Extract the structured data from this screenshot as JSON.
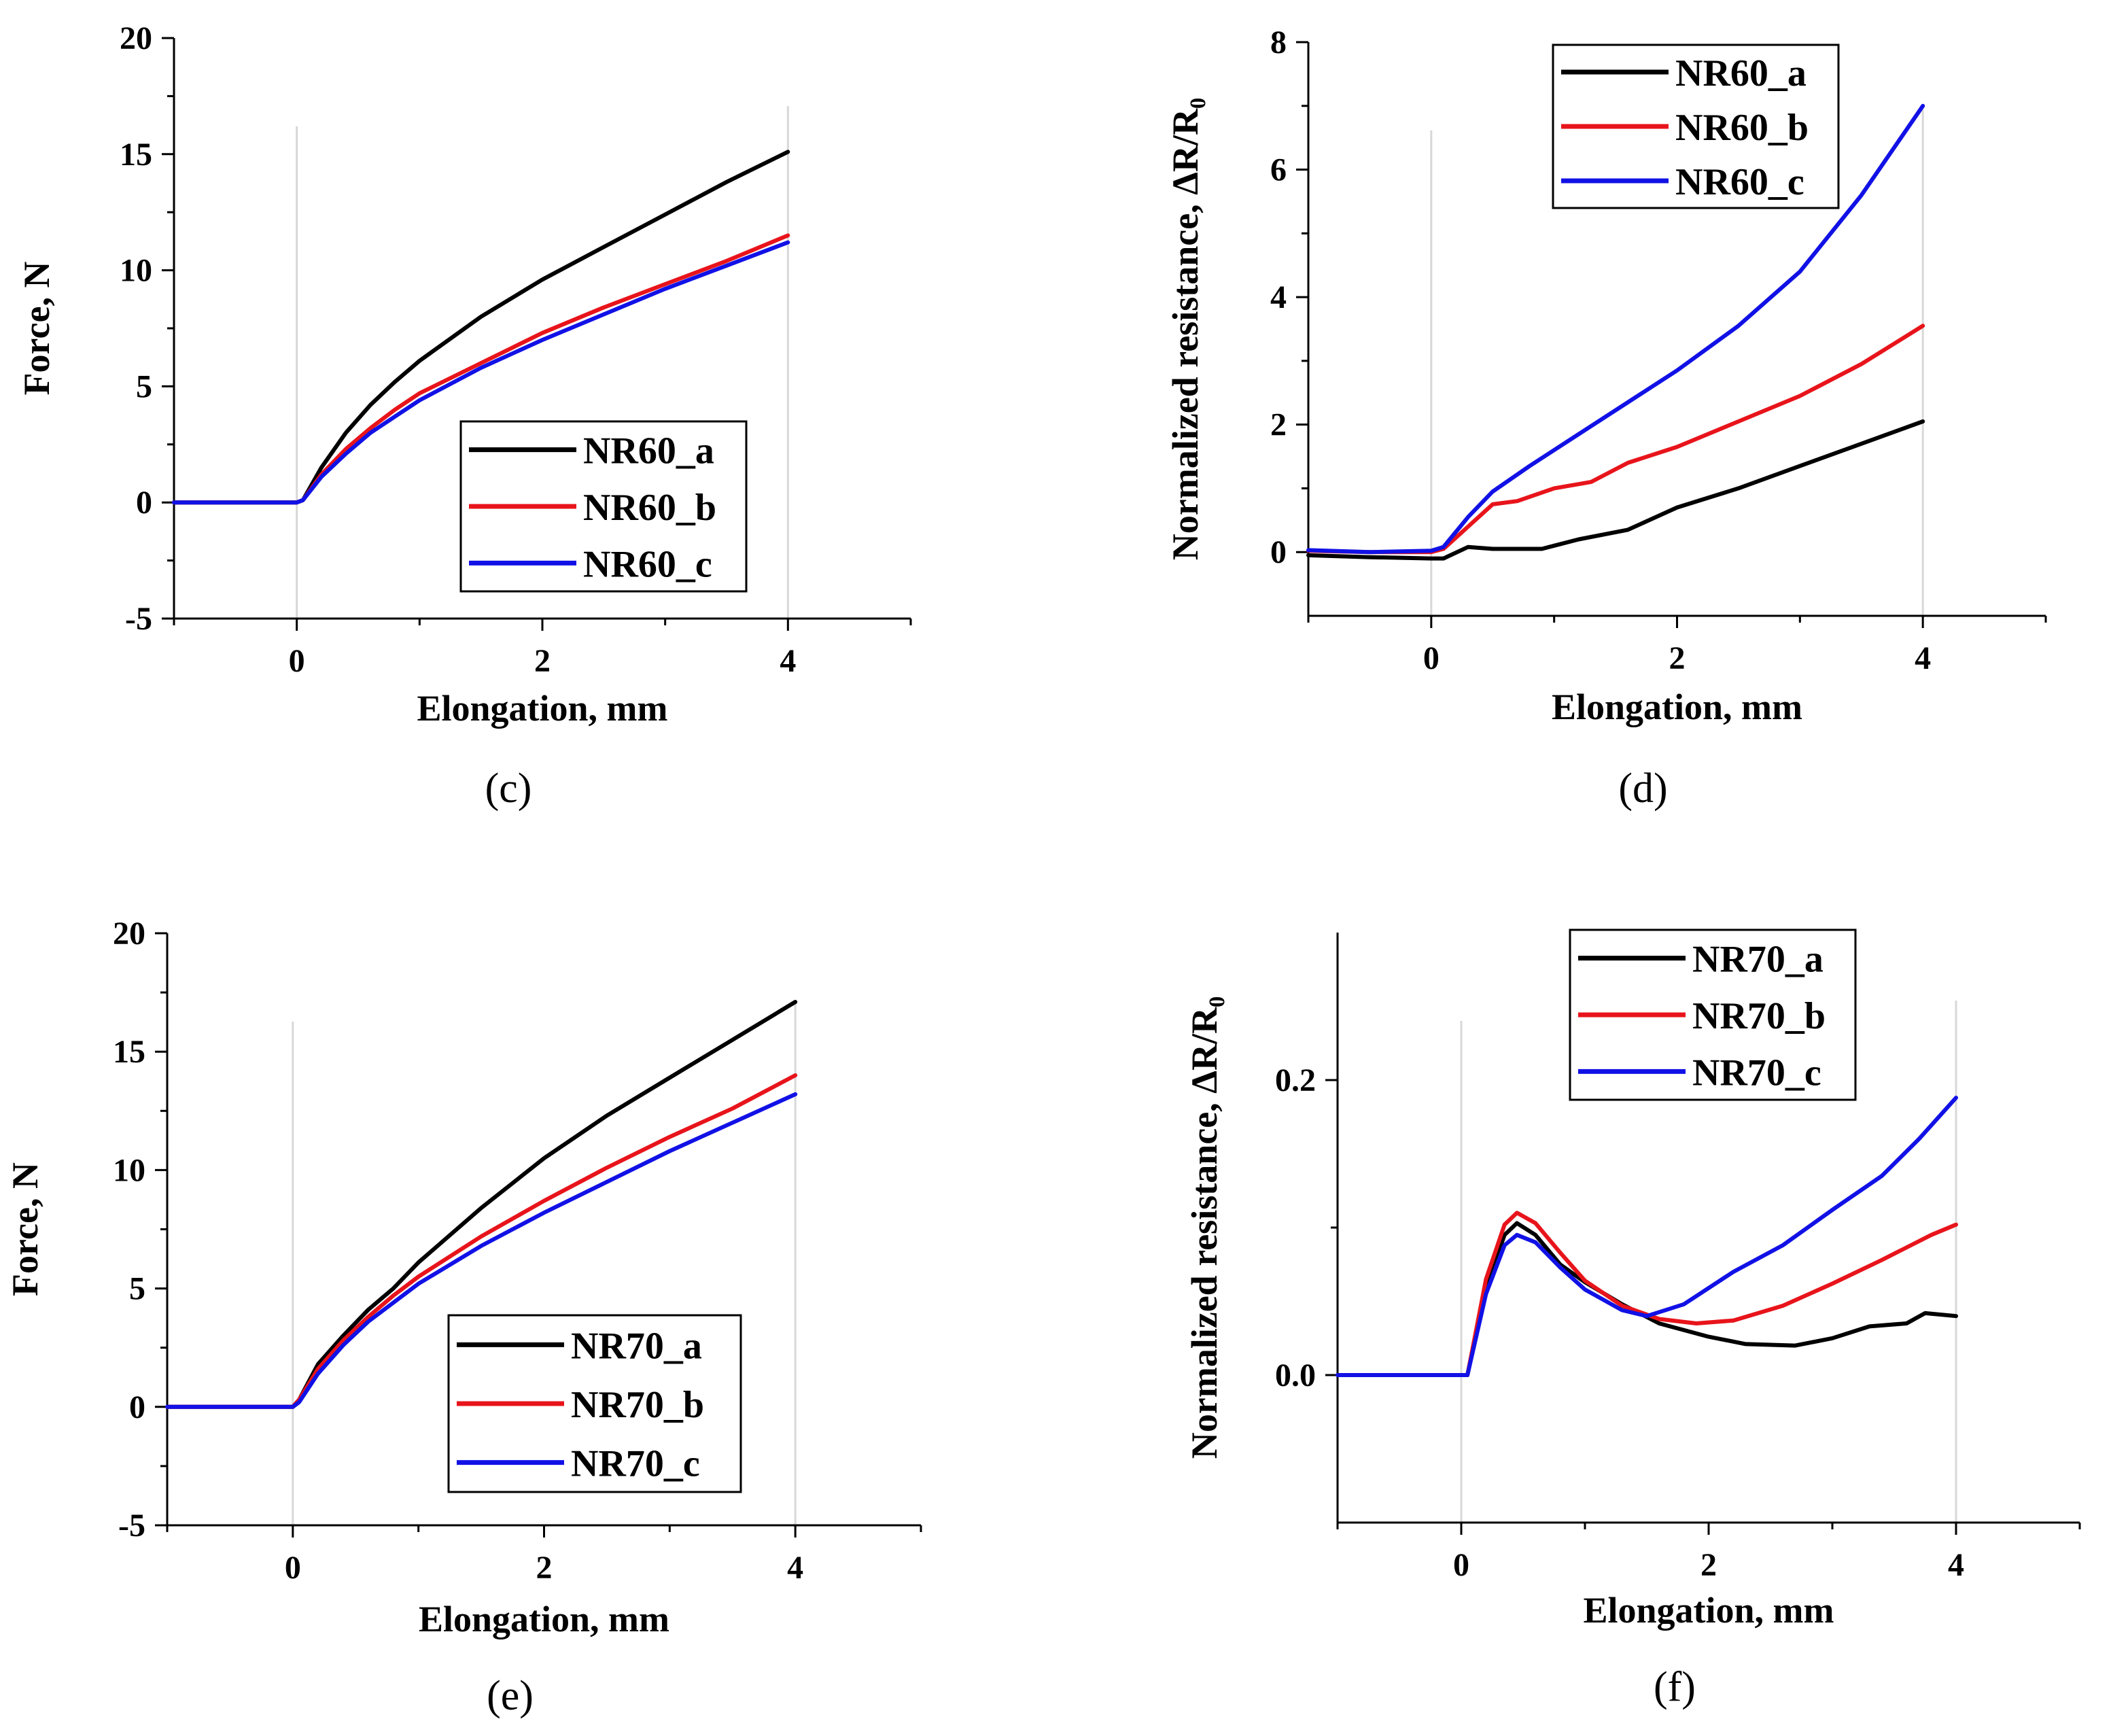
{
  "colors": {
    "a": "#000000",
    "b": "#e8141b",
    "c": "#1111e6",
    "zero_line": "#d8d8d8"
  },
  "chart_data": [
    {
      "panel_label": "(c)",
      "type": "line",
      "xlabel": "Elongation, mm",
      "ylabel": "Force, N",
      "xlim": [
        -1,
        5
      ],
      "ylim": [
        -5,
        20
      ],
      "xticks": [
        0,
        2,
        4
      ],
      "xtick_labels": [
        "0",
        "2",
        "4"
      ],
      "yticks": [
        -5,
        0,
        5,
        10,
        15,
        20
      ],
      "ytick_labels": [
        "-5",
        "0",
        "5",
        "10",
        "15",
        "20"
      ],
      "legend_position": "bottom-center",
      "series": [
        {
          "name": "NR60_a",
          "color_key": "a",
          "x": [
            -1,
            0,
            0.05,
            0.2,
            0.4,
            0.6,
            0.8,
            1.0,
            1.5,
            2.0,
            2.5,
            3.0,
            3.5,
            4.0
          ],
          "y": [
            0,
            0,
            0.1,
            1.5,
            3.0,
            4.2,
            5.2,
            6.1,
            8.0,
            9.6,
            11.0,
            12.4,
            13.8,
            15.1
          ]
        },
        {
          "name": "NR60_b",
          "color_key": "b",
          "x": [
            -1,
            0,
            0.05,
            0.2,
            0.4,
            0.6,
            0.8,
            1.0,
            1.5,
            2.0,
            2.5,
            3.0,
            3.5,
            4.0
          ],
          "y": [
            0,
            0,
            0.1,
            1.2,
            2.3,
            3.2,
            4.0,
            4.7,
            6.0,
            7.3,
            8.4,
            9.4,
            10.4,
            11.5
          ]
        },
        {
          "name": "NR60_c",
          "color_key": "c",
          "x": [
            -1,
            0,
            0.05,
            0.2,
            0.4,
            0.6,
            0.8,
            1.0,
            1.5,
            2.0,
            2.5,
            3.0,
            3.5,
            4.0
          ],
          "y": [
            0,
            0,
            0.1,
            1.1,
            2.1,
            3.0,
            3.7,
            4.4,
            5.8,
            7.0,
            8.1,
            9.2,
            10.2,
            11.2
          ]
        }
      ]
    },
    {
      "panel_label": "(d)",
      "type": "line",
      "xlabel": "Elongation, mm",
      "ylabel": "Normalized resistance, ΔR/R₀",
      "xlim": [
        -1,
        5
      ],
      "ylim": [
        -1,
        8
      ],
      "xticks": [
        0,
        2,
        4
      ],
      "xtick_labels": [
        "0",
        "2",
        "4"
      ],
      "yticks": [
        0,
        2,
        4,
        6,
        8
      ],
      "ytick_labels": [
        "0",
        "2",
        "4",
        "6",
        "8"
      ],
      "legend_position": "top-center",
      "series": [
        {
          "name": "NR60_a",
          "color_key": "a",
          "x": [
            -1,
            -0.5,
            0,
            0.1,
            0.3,
            0.5,
            0.9,
            1.2,
            1.6,
            2.0,
            2.5,
            3.0,
            3.5,
            4.0
          ],
          "y": [
            -0.05,
            -0.08,
            -0.1,
            -0.1,
            0.08,
            0.05,
            0.05,
            0.2,
            0.35,
            0.7,
            1.0,
            1.35,
            1.7,
            2.05
          ]
        },
        {
          "name": "NR60_b",
          "color_key": "b",
          "x": [
            -1,
            -0.5,
            0,
            0.1,
            0.3,
            0.5,
            0.7,
            1.0,
            1.3,
            1.6,
            2.0,
            2.5,
            3.0,
            3.5,
            4.0
          ],
          "y": [
            0.02,
            0.0,
            0.0,
            0.05,
            0.4,
            0.75,
            0.8,
            1.0,
            1.1,
            1.4,
            1.65,
            2.05,
            2.45,
            2.95,
            3.55
          ]
        },
        {
          "name": "NR60_c",
          "color_key": "c",
          "x": [
            -1,
            -0.5,
            0,
            0.1,
            0.3,
            0.5,
            0.8,
            1.2,
            1.6,
            2.0,
            2.5,
            3.0,
            3.5,
            4.0
          ],
          "y": [
            0.03,
            0.0,
            0.02,
            0.08,
            0.55,
            0.95,
            1.35,
            1.85,
            2.35,
            2.85,
            3.55,
            4.4,
            5.6,
            7.0
          ]
        }
      ]
    },
    {
      "panel_label": "(e)",
      "type": "line",
      "xlabel": "Elongation, mm",
      "ylabel": "Force, N",
      "xlim": [
        -1,
        5
      ],
      "ylim": [
        -5,
        20
      ],
      "xticks": [
        0,
        2,
        4
      ],
      "xtick_labels": [
        "0",
        "2",
        "4"
      ],
      "yticks": [
        -5,
        0,
        5,
        10,
        15,
        20
      ],
      "ytick_labels": [
        "-5",
        "0",
        "5",
        "10",
        "15",
        "20"
      ],
      "legend_position": "bottom-center",
      "series": [
        {
          "name": "NR70_a",
          "color_key": "a",
          "x": [
            -1,
            0,
            0.05,
            0.2,
            0.4,
            0.6,
            0.8,
            1.0,
            1.5,
            2.0,
            2.5,
            3.0,
            3.5,
            4.0
          ],
          "y": [
            0,
            0,
            0.3,
            1.8,
            3.0,
            4.1,
            5.0,
            6.1,
            8.4,
            10.5,
            12.3,
            13.9,
            15.5,
            17.1
          ]
        },
        {
          "name": "NR70_b",
          "color_key": "b",
          "x": [
            -1,
            0,
            0.05,
            0.2,
            0.4,
            0.6,
            0.8,
            1.0,
            1.5,
            2.0,
            2.5,
            3.0,
            3.5,
            4.0
          ],
          "y": [
            0,
            0,
            0.3,
            1.6,
            2.8,
            3.8,
            4.7,
            5.5,
            7.2,
            8.7,
            10.1,
            11.4,
            12.6,
            14.0
          ]
        },
        {
          "name": "NR70_c",
          "color_key": "c",
          "x": [
            -1,
            0,
            0.05,
            0.2,
            0.4,
            0.6,
            0.8,
            1.0,
            1.5,
            2.0,
            2.5,
            3.0,
            3.5,
            4.0
          ],
          "y": [
            0,
            0,
            0.2,
            1.4,
            2.6,
            3.6,
            4.4,
            5.2,
            6.8,
            8.2,
            9.5,
            10.8,
            12.0,
            13.2
          ]
        }
      ]
    },
    {
      "panel_label": "(f)",
      "type": "line",
      "xlabel": "Elongation, mm",
      "ylabel": "Normalized resistance, ΔR/R₀",
      "xlim": [
        -1,
        5
      ],
      "ylim": [
        -0.1,
        0.3
      ],
      "xticks": [
        0,
        2,
        4
      ],
      "xtick_labels": [
        "0",
        "2",
        "4"
      ],
      "yticks": [
        0.0,
        0.2
      ],
      "ytick_labels": [
        "0.0",
        "0.2"
      ],
      "legend_position": "top-center",
      "series": [
        {
          "name": "NR70_a",
          "color_key": "a",
          "x": [
            -1,
            0,
            0.05,
            0.2,
            0.35,
            0.45,
            0.6,
            0.8,
            1.0,
            1.3,
            1.6,
            2.0,
            2.3,
            2.7,
            3.0,
            3.3,
            3.6,
            3.75,
            4.0
          ],
          "y": [
            0,
            0,
            0.0,
            0.06,
            0.095,
            0.103,
            0.095,
            0.075,
            0.063,
            0.048,
            0.035,
            0.026,
            0.021,
            0.02,
            0.025,
            0.033,
            0.035,
            0.042,
            0.04
          ]
        },
        {
          "name": "NR70_b",
          "color_key": "b",
          "x": [
            -1,
            0,
            0.05,
            0.2,
            0.35,
            0.45,
            0.6,
            0.8,
            1.0,
            1.3,
            1.6,
            1.9,
            2.2,
            2.6,
            3.0,
            3.4,
            3.8,
            4.0
          ],
          "y": [
            0,
            0,
            0.0,
            0.065,
            0.102,
            0.11,
            0.103,
            0.083,
            0.064,
            0.047,
            0.038,
            0.035,
            0.037,
            0.047,
            0.062,
            0.078,
            0.095,
            0.102
          ]
        },
        {
          "name": "NR70_c",
          "color_key": "c",
          "x": [
            -1,
            0,
            0.05,
            0.2,
            0.35,
            0.45,
            0.6,
            0.8,
            1.0,
            1.3,
            1.5,
            1.8,
            2.2,
            2.6,
            3.0,
            3.4,
            3.7,
            4.0
          ],
          "y": [
            0,
            0,
            0.0,
            0.055,
            0.088,
            0.095,
            0.09,
            0.073,
            0.058,
            0.044,
            0.04,
            0.048,
            0.07,
            0.088,
            0.112,
            0.135,
            0.16,
            0.188
          ]
        }
      ]
    }
  ]
}
